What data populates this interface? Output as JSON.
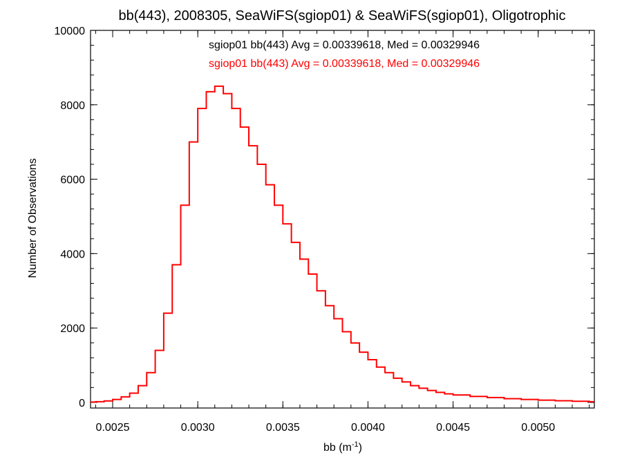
{
  "chart_data": {
    "type": "line",
    "step": true,
    "title": "bb(443), 2008305, SeaWiFS(sgiop01) & SeaWiFS(sgiop01), Oligotrophic",
    "xlabel": {
      "base": "bb (m",
      "sup": "-1",
      "tail": ")"
    },
    "ylabel": "Number of Observations",
    "xlim": [
      0.00237,
      0.00533
    ],
    "ylim": [
      -150,
      10000
    ],
    "xticks": [
      {
        "v": 0.0025,
        "label": "0.0025"
      },
      {
        "v": 0.003,
        "label": "0.0030"
      },
      {
        "v": 0.0035,
        "label": "0.0035"
      },
      {
        "v": 0.004,
        "label": "0.0040"
      },
      {
        "v": 0.0045,
        "label": "0.0045"
      },
      {
        "v": 0.005,
        "label": "0.0050"
      }
    ],
    "yticks": [
      {
        "v": 0,
        "label": "0"
      },
      {
        "v": 2000,
        "label": "2000"
      },
      {
        "v": 4000,
        "label": "4000"
      },
      {
        "v": 6000,
        "label": "6000"
      },
      {
        "v": 8000,
        "label": "8000"
      },
      {
        "v": 10000,
        "label": "10000"
      }
    ],
    "annotations": [
      {
        "text": "sgiop01 bb(443) Avg = 0.00339618, Med = 0.00329946",
        "color": "#000000"
      },
      {
        "text": "sgiop01 bb(443) Avg = 0.00339618, Med = 0.00329946",
        "color": "#ff0000"
      }
    ],
    "series": [
      {
        "color": "#ff0000",
        "x": [
          0.00237,
          0.0024,
          0.00245,
          0.0025,
          0.00255,
          0.0026,
          0.00265,
          0.0027,
          0.00275,
          0.0028,
          0.00285,
          0.0029,
          0.00295,
          0.003,
          0.00305,
          0.0031,
          0.00315,
          0.0032,
          0.00325,
          0.0033,
          0.00335,
          0.0034,
          0.00345,
          0.0035,
          0.00355,
          0.0036,
          0.00365,
          0.0037,
          0.00375,
          0.0038,
          0.00385,
          0.0039,
          0.00395,
          0.004,
          0.00405,
          0.0041,
          0.00415,
          0.0042,
          0.00425,
          0.0043,
          0.00435,
          0.0044,
          0.00445,
          0.0045,
          0.0046,
          0.0047,
          0.0048,
          0.0049,
          0.005,
          0.0051,
          0.0052,
          0.0053
        ],
        "y": [
          10,
          20,
          40,
          80,
          150,
          250,
          450,
          800,
          1400,
          2400,
          3700,
          5300,
          7000,
          7900,
          8350,
          8500,
          8300,
          7900,
          7400,
          6900,
          6400,
          5850,
          5300,
          4800,
          4300,
          3850,
          3450,
          3000,
          2600,
          2250,
          1900,
          1600,
          1350,
          1150,
          950,
          800,
          650,
          550,
          450,
          380,
          320,
          270,
          230,
          200,
          160,
          130,
          100,
          80,
          60,
          45,
          30,
          20
        ]
      }
    ]
  }
}
